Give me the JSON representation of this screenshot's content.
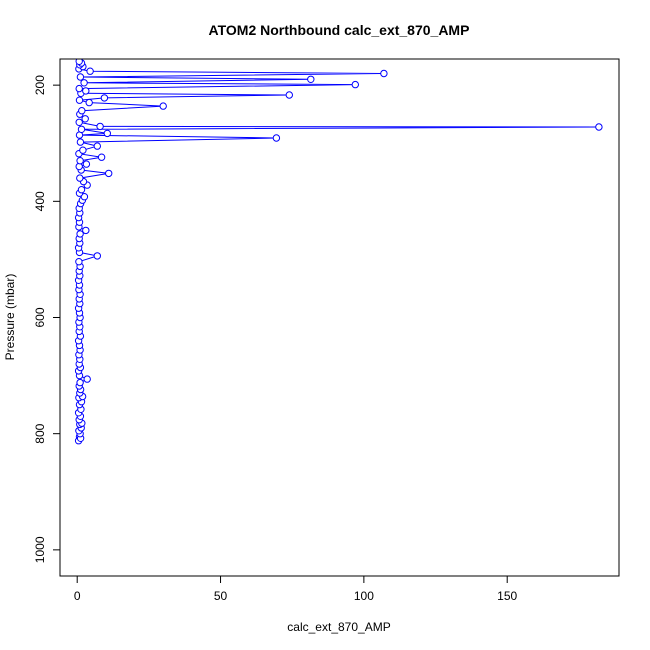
{
  "chart_data": {
    "type": "line",
    "title": "ATOM2 Northbound calc_ext_870_AMP",
    "xlabel": "calc_ext_870_AMP",
    "ylabel": "Pressure (mbar)",
    "xlim": [
      -6,
      189
    ],
    "ylim": [
      1045,
      155
    ],
    "y_reversed": true,
    "grid": false,
    "xticks": [
      0,
      50,
      100,
      150
    ],
    "yticks": [
      200,
      400,
      600,
      800,
      1000
    ],
    "colors": {
      "series": "#0000ff",
      "axis": "#000000"
    },
    "series": [
      {
        "marker": "open-circle",
        "line": true,
        "points": [
          [
            0.5,
            812
          ],
          [
            0.8,
            805
          ],
          [
            1.2,
            808
          ],
          [
            1.0,
            800
          ],
          [
            0.6,
            795
          ],
          [
            1.4,
            790
          ],
          [
            0.9,
            784
          ],
          [
            1.6,
            782
          ],
          [
            0.7,
            776
          ],
          [
            1.1,
            770
          ],
          [
            0.5,
            764
          ],
          [
            1.3,
            758
          ],
          [
            0.8,
            750
          ],
          [
            1.5,
            745
          ],
          [
            0.6,
            738
          ],
          [
            1.9,
            736
          ],
          [
            0.9,
            730
          ],
          [
            1.2,
            724
          ],
          [
            0.7,
            718
          ],
          [
            1.0,
            712
          ],
          [
            3.5,
            706
          ],
          [
            0.8,
            700
          ],
          [
            0.5,
            692
          ],
          [
            1.1,
            686
          ],
          [
            0.7,
            680
          ],
          [
            0.9,
            672
          ],
          [
            0.6,
            664
          ],
          [
            1.0,
            656
          ],
          [
            0.8,
            648
          ],
          [
            0.5,
            640
          ],
          [
            1.1,
            632
          ],
          [
            0.7,
            624
          ],
          [
            0.9,
            616
          ],
          [
            0.6,
            608
          ],
          [
            1.0,
            600
          ],
          [
            0.8,
            592
          ],
          [
            0.5,
            584
          ],
          [
            0.9,
            576
          ],
          [
            0.7,
            568
          ],
          [
            1.0,
            560
          ],
          [
            0.6,
            552
          ],
          [
            0.8,
            544
          ],
          [
            0.5,
            536
          ],
          [
            0.9,
            528
          ],
          [
            0.7,
            520
          ],
          [
            1.0,
            512
          ],
          [
            0.6,
            504
          ],
          [
            7.0,
            494
          ],
          [
            0.8,
            488
          ],
          [
            0.5,
            480
          ],
          [
            0.9,
            472
          ],
          [
            0.7,
            464
          ],
          [
            1.0,
            456
          ],
          [
            3.0,
            450
          ],
          [
            0.6,
            444
          ],
          [
            0.8,
            436
          ],
          [
            0.5,
            428
          ],
          [
            0.9,
            420
          ],
          [
            0.7,
            412
          ],
          [
            1.2,
            404
          ],
          [
            1.8,
            398
          ],
          [
            2.5,
            392
          ],
          [
            0.8,
            386
          ],
          [
            1.5,
            380
          ],
          [
            3.5,
            372
          ],
          [
            2.2,
            366
          ],
          [
            0.9,
            360
          ],
          [
            11.0,
            352
          ],
          [
            1.4,
            346
          ],
          [
            0.7,
            340
          ],
          [
            3.2,
            336
          ],
          [
            1.0,
            330
          ],
          [
            8.5,
            324
          ],
          [
            0.6,
            318
          ],
          [
            2.0,
            312
          ],
          [
            7.0,
            305
          ],
          [
            1.1,
            298
          ],
          [
            69.5,
            291
          ],
          [
            0.8,
            286
          ],
          [
            10.5,
            283
          ],
          [
            1.5,
            276
          ],
          [
            182.0,
            272
          ],
          [
            8.0,
            271
          ],
          [
            0.7,
            264
          ],
          [
            2.8,
            258
          ],
          [
            0.9,
            250
          ],
          [
            1.6,
            244
          ],
          [
            30.0,
            236
          ],
          [
            4.2,
            230
          ],
          [
            0.8,
            226
          ],
          [
            9.5,
            222
          ],
          [
            74.0,
            217
          ],
          [
            1.3,
            214
          ],
          [
            3.0,
            210
          ],
          [
            0.7,
            206
          ],
          [
            97.0,
            199
          ],
          [
            2.4,
            196
          ],
          [
            81.5,
            190
          ],
          [
            1.1,
            186
          ],
          [
            107.0,
            180
          ],
          [
            4.5,
            176
          ],
          [
            0.6,
            172
          ],
          [
            2.0,
            168
          ],
          [
            0.9,
            165
          ],
          [
            1.5,
            162
          ],
          [
            0.7,
            159
          ]
        ]
      }
    ]
  }
}
